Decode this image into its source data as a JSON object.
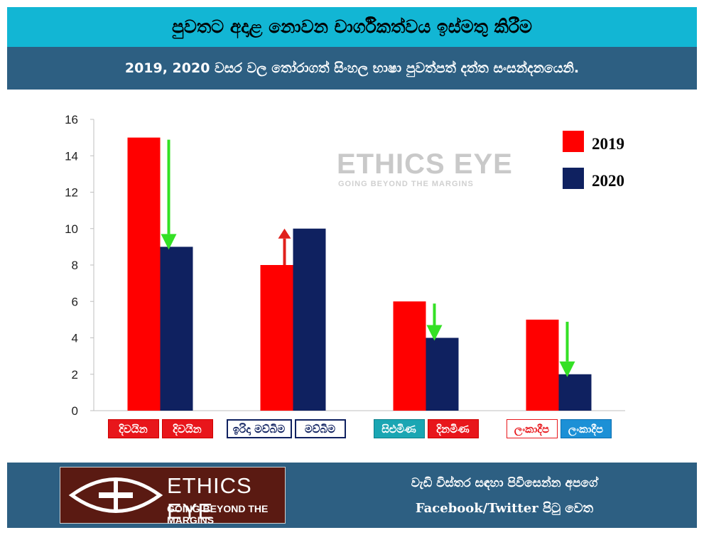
{
  "header": {
    "title": "පුවතට අදාළ නොවන චාර්ගිකත්වය ඉස්මතු කිරීම",
    "subtitle": "2019, 2020 වසර වල තෝරාගත් සිංහල භාෂා පුවත්පත් දත්ත සංසන්දනයෙනි."
  },
  "colors": {
    "series_2019": "#ff0000",
    "series_2020": "#0f2160",
    "increase_arrow": "#e0201c",
    "decrease_arrow": "#34e025",
    "header_bg": "#12b6d4",
    "band_bg": "#2d5f82"
  },
  "watermark": {
    "title": "ETHICS EYE",
    "tagline": "GOING BEYOND THE MARGINS"
  },
  "chart_data": {
    "type": "bar",
    "categories": [
      "දිවයින",
      "මව්බිම",
      "සිළුමිණ / දිනමිණ",
      "ලංකාදීප"
    ],
    "series": [
      {
        "name": "2019",
        "values": [
          15,
          8,
          6,
          5
        ]
      },
      {
        "name": "2020",
        "values": [
          9,
          10,
          4,
          2
        ]
      }
    ],
    "ylim": [
      0,
      16
    ],
    "yticks": [
      0,
      2,
      4,
      6,
      8,
      10,
      12,
      14,
      16
    ],
    "grid": false,
    "legend": "top-right",
    "change_arrows": [
      "decrease",
      "increase",
      "decrease",
      "decrease"
    ],
    "category_logos": [
      {
        "left": "දිවයින",
        "right": "දිවයින",
        "left_style": "red",
        "right_style": "red"
      },
      {
        "left": "ඉරිදා මව්බිම",
        "right": "මව්බිම",
        "left_style": "navy-outline",
        "right_style": "navy-outline"
      },
      {
        "left": "සිළුමිණ",
        "right": "දිනමිණ",
        "left_style": "teal",
        "right_style": "red"
      },
      {
        "left": "ලංකාදීප",
        "right": "ලංකාදීප",
        "left_style": "red-outline",
        "right_style": "blue"
      }
    ]
  },
  "footer": {
    "logo_title": "ETHICS EYE",
    "logo_tagline": "GOING BEYOND THE MARGINS",
    "line1": "වැඩි විස්තර සඳහා පිවිසෙන්න අපගේ",
    "line2": "Facebook/Twitter  පිටු වෙත"
  }
}
